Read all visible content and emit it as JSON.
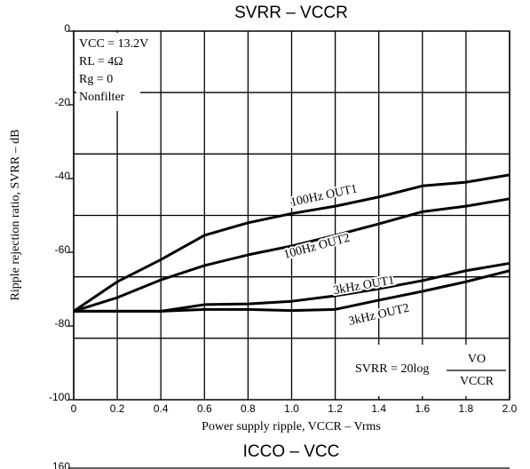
{
  "chart_data": [
    {
      "type": "line",
      "title": "SVRR – VCCR",
      "xlabel": "Power supply ripple, VCCR – Vrms",
      "ylabel": "Ripple rejection ratio, SVRR – dB",
      "xlim": [
        0,
        2
      ],
      "ylim": [
        -100,
        0
      ],
      "xticks": [
        0,
        0.2,
        0.4,
        0.6,
        0.8,
        {
          "value": 1,
          "label": "1.0"
        },
        1.2,
        1.4,
        1.6,
        1.8,
        {
          "value": 2,
          "label": "2.0"
        }
      ],
      "yticks": [
        -100,
        -80,
        -60,
        -40,
        -20,
        0
      ],
      "ygrid": [
        -16.67,
        -33.33,
        -50,
        -66.67,
        -83.33
      ],
      "grid": true,
      "x": [
        0,
        0.2,
        0.4,
        0.6,
        0.8,
        1.0,
        1.2,
        1.4,
        1.6,
        1.8,
        2.0
      ],
      "series": [
        {
          "name": "100Hz OUT1",
          "color": "#000000",
          "values": [
            -76,
            -68,
            -62,
            -55.4,
            -52,
            -49.5,
            -47.5,
            -45,
            -42,
            -41,
            -39
          ]
        },
        {
          "name": "100Hz OUT2",
          "color": "#000000",
          "values": [
            -76,
            -72.3,
            -67.5,
            -63.6,
            -60.7,
            -58.3,
            -55.4,
            -52.3,
            -49,
            -47.5,
            -45.5
          ]
        },
        {
          "name": "3kHz OUT1",
          "color": "#000000",
          "values": [
            -76,
            -76,
            -76,
            -74.2,
            -74,
            -73.3,
            -71.8,
            -69.9,
            -67.7,
            -65,
            -63
          ]
        },
        {
          "name": "3kHz OUT2",
          "color": "#000000",
          "values": [
            -76,
            -76,
            -76,
            -75.5,
            -75.5,
            -75.8,
            -75.5,
            -73,
            -70.6,
            -68,
            -65
          ]
        }
      ],
      "annotations": [
        "VCC = 13.2V",
        "RL = 4Ω",
        "Rg = 0",
        "Nonfilter"
      ],
      "formula": {
        "left": "SVRR = 20log",
        "numerator": "VO",
        "denominator": "VCCR"
      }
    },
    {
      "type": "line",
      "title": "ICCO – VCC",
      "yticks": [
        160
      ]
    }
  ]
}
